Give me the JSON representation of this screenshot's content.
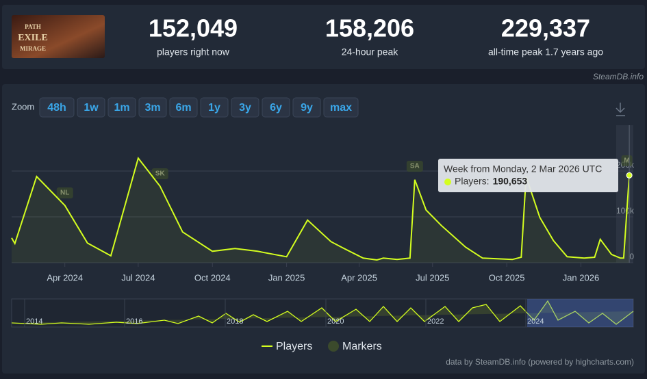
{
  "header": {
    "logo": [
      "PATH",
      "EXILE",
      "MIRAGE"
    ],
    "stats": [
      {
        "value": "152,049",
        "label": "players right now"
      },
      {
        "value": "158,206",
        "label": "24-hour peak"
      },
      {
        "value": "229,337",
        "label": "all-time peak 1.7 years ago"
      }
    ],
    "source": "SteamDB.info"
  },
  "zoom": {
    "label": "Zoom",
    "buttons": [
      "48h",
      "1w",
      "1m",
      "3m",
      "6m",
      "1y",
      "3y",
      "6y",
      "9y",
      "max"
    ]
  },
  "chart_data": {
    "type": "line",
    "x": [
      "2024-01-26",
      "2024-01-30",
      "2024-02-26",
      "2024-04-01",
      "2024-04-29",
      "2024-05-28",
      "2024-07-01",
      "2024-07-28",
      "2024-08-25",
      "2024-10-01",
      "2024-10-29",
      "2024-11-26",
      "2025-01-01",
      "2025-01-27",
      "2025-02-25",
      "2025-03-11",
      "2025-04-06",
      "2025-04-23",
      "2025-05-01",
      "2025-05-18",
      "2025-06-03",
      "2025-06-09",
      "2025-06-23",
      "2025-07-12",
      "2025-08-11",
      "2025-09-01",
      "2025-10-08",
      "2025-10-19",
      "2025-10-25",
      "2025-11-11",
      "2025-11-28",
      "2025-12-15",
      "2026-01-05",
      "2026-01-18",
      "2026-01-25",
      "2026-02-08",
      "2026-02-19",
      "2026-02-23",
      "2026-03-02"
    ],
    "series": [
      {
        "name": "Players",
        "color": "#d4fe1f",
        "values": [
          54000,
          42000,
          188000,
          125000,
          43000,
          15000,
          228000,
          167000,
          67000,
          25000,
          31000,
          25000,
          13000,
          93000,
          46000,
          33000,
          10000,
          6000,
          10000,
          7000,
          10000,
          181000,
          115000,
          81000,
          34000,
          10000,
          7000,
          12000,
          188000,
          99000,
          48000,
          13000,
          10000,
          12000,
          51000,
          18000,
          10000,
          10000,
          190653
        ]
      }
    ],
    "markers_legend": {
      "name": "Markers",
      "color": "#3b4a2c"
    },
    "markers": [
      {
        "label": "NL",
        "x": "2024-04-01"
      },
      {
        "label": "SK",
        "x": "2024-07-28"
      },
      {
        "label": "SA",
        "x": "2025-06-09"
      },
      {
        "label": "M",
        "x": "2026-02-27"
      }
    ],
    "xlim": [
      "2024-01-26",
      "2026-03-07"
    ],
    "xticks": [
      {
        "value": "2024-04-01",
        "label": "Apr 2024"
      },
      {
        "value": "2024-07-01",
        "label": "Jul 2024"
      },
      {
        "value": "2024-10-01",
        "label": "Oct 2024"
      },
      {
        "value": "2025-01-01",
        "label": "Jan 2025"
      },
      {
        "value": "2025-04-01",
        "label": "Apr 2025"
      },
      {
        "value": "2025-07-01",
        "label": "Jul 2025"
      },
      {
        "value": "2025-10-01",
        "label": "Oct 2025"
      },
      {
        "value": "2026-01-01",
        "label": "Jan 2026"
      }
    ],
    "ylim": [
      0,
      300000
    ],
    "yticks": [
      0,
      {
        "value": 100000,
        "label": "100k"
      },
      {
        "value": 200000,
        "label": "200k"
      }
    ],
    "grid": true,
    "tooltip": {
      "title": "Week from Monday, 2 Mar 2026 UTC",
      "series": "Players:",
      "value": "190,653"
    },
    "navigator_labels": [
      "2014",
      "2016",
      "2018",
      "2020",
      "2022",
      "2024"
    ],
    "credit": "data by SteamDB.info (powered by highcharts.com)"
  }
}
